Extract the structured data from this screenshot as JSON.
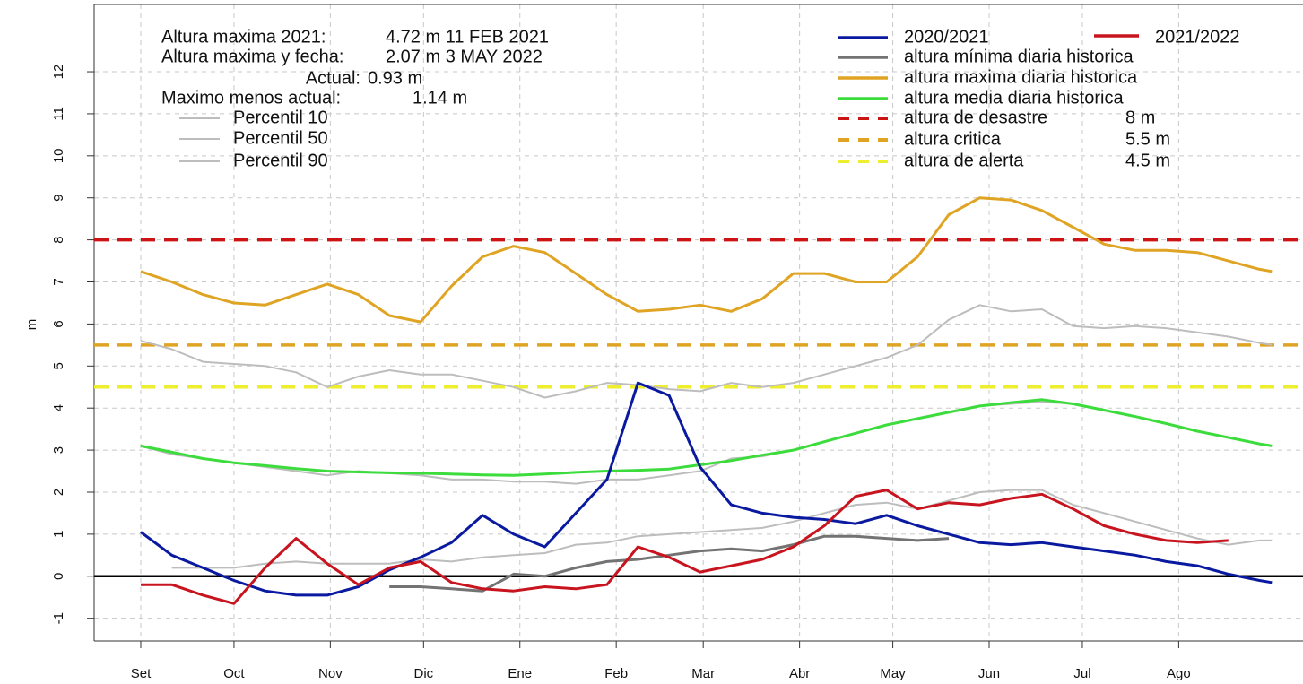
{
  "chart_data": {
    "type": "line",
    "y_label": "m",
    "annotations": [
      {
        "label": "Altura maxima 2021:",
        "value": "4.72 m 11 FEB 2021"
      },
      {
        "label": "Altura maxima y fecha:",
        "value": "2.07 m 3 MAY 2022"
      },
      {
        "label": "Actual:",
        "value": "0.93 m"
      },
      {
        "label": "Maximo menos actual:",
        "value": "1.14 m"
      }
    ],
    "xlim": [
      -15,
      374
    ],
    "xticks": [
      {
        "value": 0,
        "label": "Set"
      },
      {
        "value": 30,
        "label": "Oct"
      },
      {
        "value": 61,
        "label": "Nov"
      },
      {
        "value": 91,
        "label": "Dic"
      },
      {
        "value": 122,
        "label": "Ene"
      },
      {
        "value": 153,
        "label": "Feb"
      },
      {
        "value": 181,
        "label": "Mar"
      },
      {
        "value": 212,
        "label": "Abr"
      },
      {
        "value": 242,
        "label": "May"
      },
      {
        "value": 273,
        "label": "Jun"
      },
      {
        "value": 303,
        "label": "Jul"
      },
      {
        "value": 334,
        "label": "Ago"
      }
    ],
    "ylim": [
      -1.54,
      13.6
    ],
    "yticks": [
      -1,
      0,
      1,
      2,
      3,
      4,
      5,
      6,
      7,
      8,
      9,
      10,
      11,
      12
    ],
    "grid": true,
    "zero_line": 0,
    "x": [
      0,
      10,
      20,
      30,
      40,
      50,
      60,
      70,
      80,
      90,
      100,
      110,
      120,
      130,
      140,
      150,
      160,
      170,
      180,
      190,
      200,
      210,
      220,
      230,
      240,
      250,
      260,
      270,
      280,
      290,
      300,
      310,
      320,
      330,
      340,
      350,
      360,
      364
    ],
    "series": [
      {
        "name": "Percentil 10",
        "color": "#bdbdbd",
        "legend_position": "left",
        "values": [
          null,
          0.2,
          0.2,
          0.2,
          0.3,
          0.35,
          0.3,
          0.3,
          0.3,
          0.4,
          0.35,
          0.45,
          0.5,
          0.55,
          0.75,
          0.8,
          0.95,
          1.0,
          1.05,
          1.1,
          1.15,
          1.3,
          1.5,
          1.7,
          1.75,
          1.6,
          1.8,
          2.0,
          2.05,
          2.05,
          1.7,
          1.5,
          1.3,
          1.1,
          0.9,
          0.75,
          0.85,
          0.85
        ]
      },
      {
        "name": "Percentil 50",
        "color": "#bdbdbd",
        "legend_position": "left",
        "values": [
          3.1,
          2.9,
          2.8,
          2.7,
          2.6,
          2.5,
          2.4,
          2.5,
          2.45,
          2.4,
          2.3,
          2.3,
          2.25,
          2.25,
          2.2,
          2.3,
          2.3,
          2.4,
          2.5,
          2.8,
          2.85,
          3.0,
          3.2,
          3.4,
          3.6,
          3.75,
          3.9,
          4.05,
          4.1,
          4.15,
          4.1,
          3.95,
          3.8,
          3.63,
          3.45,
          3.3,
          3.15,
          3.1
        ]
      },
      {
        "name": "Percentil 90",
        "color": "#bdbdbd",
        "legend_position": "left",
        "values": [
          5.6,
          5.4,
          5.1,
          5.05,
          5.0,
          4.85,
          4.5,
          4.75,
          4.9,
          4.8,
          4.8,
          4.65,
          4.5,
          4.25,
          4.4,
          4.6,
          4.55,
          4.45,
          4.4,
          4.6,
          4.5,
          4.6,
          4.8,
          5.0,
          5.2,
          5.5,
          6.1,
          6.45,
          6.3,
          6.35,
          5.95,
          5.9,
          5.95,
          5.9,
          5.8,
          5.7,
          5.55,
          5.5
        ]
      },
      {
        "name": "altura mínima diaria historica",
        "color": "#737373",
        "legend_position": "right",
        "values": [
          null,
          null,
          null,
          null,
          null,
          null,
          null,
          null,
          -0.25,
          -0.25,
          -0.3,
          -0.35,
          0.05,
          0.0,
          0.2,
          0.35,
          0.4,
          0.5,
          0.6,
          0.65,
          0.6,
          0.75,
          0.95,
          0.95,
          0.9,
          0.85,
          0.9,
          null,
          null,
          null,
          null,
          null,
          null,
          null,
          null,
          null,
          null,
          null
        ]
      },
      {
        "name": "altura maxima diaria historica",
        "color": "#e0a424",
        "legend_position": "right",
        "values": [
          7.25,
          7.0,
          6.7,
          6.5,
          6.45,
          6.7,
          6.95,
          6.7,
          6.2,
          6.05,
          6.9,
          7.6,
          7.85,
          7.7,
          7.2,
          6.7,
          6.3,
          6.35,
          6.45,
          6.3,
          6.6,
          7.2,
          7.2,
          7.0,
          7.0,
          7.6,
          8.6,
          9.0,
          8.95,
          8.7,
          8.3,
          7.9,
          7.75,
          7.75,
          7.7,
          7.5,
          7.3,
          7.25
        ]
      },
      {
        "name": "altura media diaria historica",
        "color": "#3cdc3c",
        "legend_position": "right",
        "values": [
          3.1,
          2.95,
          2.8,
          2.7,
          2.63,
          2.56,
          2.5,
          2.48,
          2.46,
          2.45,
          2.43,
          2.41,
          2.4,
          2.43,
          2.47,
          2.5,
          2.52,
          2.55,
          2.65,
          2.75,
          2.88,
          3.0,
          3.2,
          3.4,
          3.6,
          3.75,
          3.9,
          4.05,
          4.13,
          4.2,
          4.1,
          3.95,
          3.8,
          3.63,
          3.45,
          3.3,
          3.15,
          3.1
        ]
      },
      {
        "name": "2020/2021",
        "color": "#0a1aa0",
        "legend_position": "right",
        "values": [
          1.05,
          0.5,
          0.2,
          -0.1,
          -0.35,
          -0.45,
          -0.45,
          -0.25,
          0.15,
          0.45,
          0.8,
          1.45,
          1.0,
          0.7,
          1.5,
          2.3,
          4.6,
          4.3,
          2.6,
          1.7,
          1.5,
          1.4,
          1.35,
          1.25,
          1.45,
          1.2,
          1.0,
          0.8,
          0.75,
          0.8,
          0.7,
          0.6,
          0.5,
          0.35,
          0.25,
          0.05,
          -0.1,
          -0.15
        ]
      },
      {
        "name": "2021/2022",
        "color": "#c8141e",
        "legend_position": "right",
        "values": [
          -0.2,
          -0.2,
          -0.45,
          -0.65,
          0.2,
          0.9,
          0.3,
          -0.2,
          0.2,
          0.35,
          -0.15,
          -0.3,
          -0.35,
          -0.25,
          -0.3,
          -0.2,
          0.7,
          0.45,
          0.1,
          0.25,
          0.4,
          0.7,
          1.2,
          1.9,
          2.05,
          1.6,
          1.75,
          1.7,
          1.85,
          1.95,
          1.6,
          1.2,
          1.0,
          0.85,
          0.8,
          0.85,
          null,
          null
        ]
      }
    ],
    "thresholds": [
      {
        "name": "altura de desastre",
        "value": 8,
        "value_label": "8 m",
        "color": "#cc1414"
      },
      {
        "name": "altura critica",
        "value": 5.5,
        "value_label": "5.5 m",
        "color": "#e0a424"
      },
      {
        "name": "altura de alerta",
        "value": 4.5,
        "value_label": "4.5 m",
        "color": "#eeee30"
      }
    ]
  }
}
